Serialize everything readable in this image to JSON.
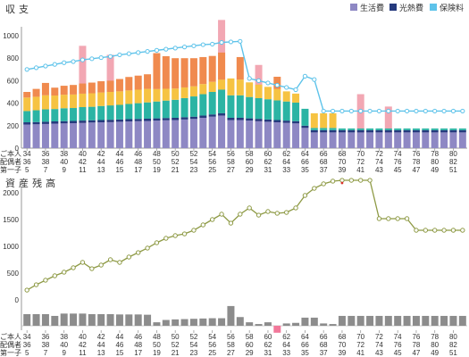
{
  "chart_data": [
    {
      "type": "bar",
      "title": "収 支",
      "stacked": true,
      "yticks": [
        0,
        200,
        400,
        600,
        800,
        1000
      ],
      "ylim": [
        0,
        1150
      ],
      "legend": [
        {
          "label": "生活費",
          "color": "#8e88c4"
        },
        {
          "label": "光熱費",
          "color": "#253a7d"
        },
        {
          "label": "保険料",
          "color": "#5ec3ea"
        }
      ],
      "x_label_rows": [
        {
          "label": "ご本人",
          "values": [
            "34",
            "36",
            "38",
            "40",
            "42",
            "44",
            "46",
            "48",
            "50",
            "52",
            "54",
            "56",
            "58",
            "60",
            "62",
            "64",
            "66",
            "68",
            "70",
            "72",
            "74",
            "76",
            "78",
            "80"
          ]
        },
        {
          "label": "配偶者",
          "values": [
            "36",
            "38",
            "40",
            "42",
            "44",
            "46",
            "48",
            "50",
            "52",
            "54",
            "56",
            "58",
            "60",
            "62",
            "64",
            "66",
            "68",
            "70",
            "72",
            "74",
            "76",
            "78",
            "80",
            "82"
          ]
        },
        {
          "label": "第一子",
          "values": [
            "5",
            "7",
            "9",
            "11",
            "13",
            "15",
            "17",
            "19",
            "21",
            "23",
            "25",
            "27",
            "29",
            "31",
            "33",
            "35",
            "37",
            "39",
            "41",
            "43",
            "45",
            "47",
            "49",
            "51"
          ]
        }
      ],
      "series": [
        {
          "name": "生活費",
          "color": "#8e88c4",
          "values": [
            210,
            212,
            215,
            218,
            220,
            222,
            225,
            228,
            230,
            232,
            235,
            238,
            240,
            242,
            245,
            248,
            250,
            255,
            260,
            270,
            280,
            290,
            250,
            250,
            245,
            240,
            235,
            230,
            225,
            220,
            180,
            140,
            140,
            140,
            140,
            140,
            140,
            140,
            140,
            140,
            140,
            140,
            140,
            140,
            140,
            140,
            140,
            140
          ]
        },
        {
          "name": "光熱費",
          "color": "#253a7d",
          "values": [
            20,
            20,
            20,
            20,
            20,
            20,
            20,
            20,
            20,
            20,
            20,
            20,
            20,
            20,
            20,
            20,
            20,
            20,
            20,
            20,
            20,
            20,
            20,
            20,
            20,
            20,
            20,
            20,
            20,
            20,
            20,
            20,
            20,
            20,
            20,
            20,
            20,
            20,
            20,
            20,
            20,
            20,
            20,
            20,
            20,
            20,
            20,
            20
          ]
        },
        {
          "color": "#2bb4a4",
          "values": [
            100,
            105,
            110,
            110,
            115,
            115,
            120,
            120,
            125,
            128,
            130,
            135,
            140,
            145,
            150,
            155,
            160,
            170,
            180,
            190,
            200,
            210,
            200,
            200,
            190,
            185,
            180,
            175,
            170,
            165,
            150,
            20,
            20,
            20,
            15,
            15,
            15,
            15,
            15,
            15,
            15,
            15,
            15,
            15,
            15,
            15,
            15,
            15
          ]
        },
        {
          "color": "#f6c342",
          "values": [
            120,
            120,
            125,
            120,
            120,
            120,
            120,
            120,
            120,
            120,
            120,
            120,
            120,
            120,
            110,
            105,
            100,
            95,
            90,
            90,
            90,
            90,
            150,
            140,
            130,
            120,
            110,
            100,
            90,
            80,
            0,
            130,
            130,
            130,
            0,
            0,
            0,
            0,
            0,
            0,
            0,
            0,
            0,
            0,
            0,
            0,
            0,
            0
          ]
        },
        {
          "color": "#f08a4e",
          "values": [
            50,
            70,
            110,
            70,
            80,
            85,
            90,
            95,
            100,
            100,
            110,
            120,
            125,
            130,
            320,
            290,
            270,
            260,
            250,
            240,
            230,
            240,
            0,
            200,
            0,
            0,
            0,
            110,
            0,
            0,
            0,
            0,
            0,
            0,
            0,
            0,
            0,
            0,
            0,
            0,
            0,
            0,
            0,
            0,
            0,
            0,
            0,
            0
          ]
        }
      ],
      "events": {
        "color": "#f2a7b3",
        "values": [
          null,
          null,
          null,
          null,
          null,
          null,
          910,
          null,
          null,
          830,
          null,
          null,
          null,
          null,
          null,
          null,
          null,
          null,
          null,
          null,
          null,
          1140,
          null,
          null,
          null,
          740,
          null,
          null,
          null,
          null,
          null,
          null,
          null,
          null,
          null,
          null,
          480,
          null,
          null,
          370,
          null,
          null,
          null,
          null,
          null,
          null,
          null,
          null
        ]
      },
      "line": {
        "name": "保険料",
        "color": "#5ec3ea",
        "values": [
          700,
          715,
          730,
          745,
          760,
          770,
          785,
          795,
          805,
          815,
          830,
          840,
          850,
          860,
          870,
          880,
          890,
          900,
          910,
          920,
          925,
          940,
          945,
          950,
          620,
          600,
          580,
          560,
          540,
          520,
          640,
          610,
          330,
          330,
          330,
          330,
          330,
          330,
          330,
          330,
          330,
          330,
          330,
          330,
          330,
          330,
          330,
          330
        ]
      }
    },
    {
      "type": "line",
      "title": "資 産 残 高",
      "yticks": [
        0,
        500,
        1000,
        1500,
        2000
      ],
      "ylim": [
        0,
        2300
      ],
      "x_label_rows": [
        {
          "label": "ご本人",
          "values": [
            "34",
            "36",
            "38",
            "40",
            "42",
            "44",
            "46",
            "48",
            "50",
            "52",
            "54",
            "56",
            "58",
            "60",
            "62",
            "64",
            "66",
            "68",
            "70",
            "72",
            "74",
            "76",
            "78",
            "80"
          ]
        },
        {
          "label": "配偶者",
          "values": [
            "36",
            "38",
            "40",
            "42",
            "44",
            "46",
            "48",
            "50",
            "52",
            "54",
            "56",
            "58",
            "60",
            "62",
            "64",
            "66",
            "68",
            "70",
            "72",
            "74",
            "76",
            "78",
            "80",
            "82"
          ]
        },
        {
          "label": "第一子",
          "values": [
            "5",
            "7",
            "9",
            "11",
            "13",
            "15",
            "17",
            "19",
            "21",
            "23",
            "25",
            "27",
            "29",
            "31",
            "33",
            "35",
            "37",
            "39",
            "41",
            "43",
            "45",
            "47",
            "49",
            "51"
          ]
        }
      ],
      "series": [
        {
          "color": "#8e9a45",
          "values": [
            183,
            283,
            367,
            450,
            517,
            600,
            700,
            583,
            650,
            750,
            700,
            800,
            883,
            967,
            1067,
            1150,
            1200,
            1233,
            1300,
            1400,
            1500,
            1600,
            1433,
            1600,
            1717,
            1583,
            1650,
            1617,
            1633,
            1717,
            1950,
            2083,
            2167,
            2217,
            2233,
            2233,
            2233,
            2233,
            1517,
            1517,
            1517,
            1517,
            1300,
            1300,
            1300,
            1300,
            1300,
            1300
          ]
        }
      ],
      "highlight": {
        "index": 34,
        "color": "#d9332b"
      },
      "bars": {
        "color": "#8c8c8c",
        "negative_color": "#f2789a",
        "values": [
          200,
          200,
          200,
          170,
          210,
          210,
          210,
          200,
          200,
          200,
          195,
          195,
          195,
          190,
          60,
          100,
          110,
          115,
          120,
          125,
          130,
          130,
          340,
          150,
          60,
          30,
          60,
          -120,
          40,
          50,
          140,
          140,
          40,
          30,
          170,
          170,
          170,
          170,
          170,
          170,
          170,
          170,
          170,
          170,
          170,
          170,
          170,
          170
        ]
      }
    }
  ]
}
